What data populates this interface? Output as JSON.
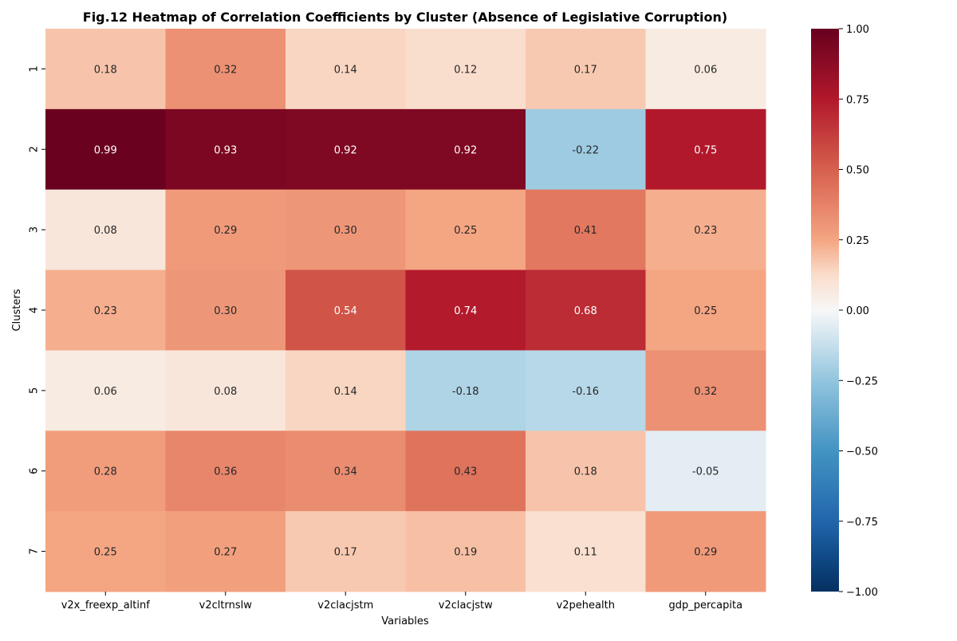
{
  "chart_data": {
    "type": "heatmap",
    "title": "Fig.12 Heatmap of Correlation Coefficients by Cluster (Absence of Legislative Corruption)",
    "xlabel": "Variables",
    "ylabel": "Clusters",
    "x_categories": [
      "v2x_freexp_altinf",
      "v2cltrnslw",
      "v2clacjstm",
      "v2clacjstw",
      "v2pehealth",
      "gdp_percapita"
    ],
    "y_categories": [
      "1",
      "2",
      "3",
      "4",
      "5",
      "6",
      "7"
    ],
    "values": [
      [
        0.18,
        0.32,
        0.14,
        0.12,
        0.17,
        0.06
      ],
      [
        0.99,
        0.93,
        0.92,
        0.92,
        -0.22,
        0.75
      ],
      [
        0.08,
        0.29,
        0.3,
        0.25,
        0.41,
        0.23
      ],
      [
        0.23,
        0.3,
        0.54,
        0.74,
        0.68,
        0.25
      ],
      [
        0.06,
        0.08,
        0.14,
        -0.18,
        -0.16,
        0.32
      ],
      [
        0.28,
        0.36,
        0.34,
        0.43,
        0.18,
        -0.05
      ],
      [
        0.25,
        0.27,
        0.17,
        0.19,
        0.11,
        0.29
      ]
    ],
    "value_range": [
      -1.0,
      1.0
    ],
    "colormap": "RdBu_r",
    "colorbar_ticks": [
      "1.00",
      "0.75",
      "0.50",
      "0.25",
      "0.00",
      "−0.25",
      "−0.50",
      "−0.75",
      "−1.00"
    ],
    "colorbar_tick_values": [
      1.0,
      0.75,
      0.5,
      0.25,
      0.0,
      -0.25,
      -0.5,
      -0.75,
      -1.0
    ],
    "annotations_shown": true,
    "annotation_format": "2 decimals",
    "grid": false
  }
}
